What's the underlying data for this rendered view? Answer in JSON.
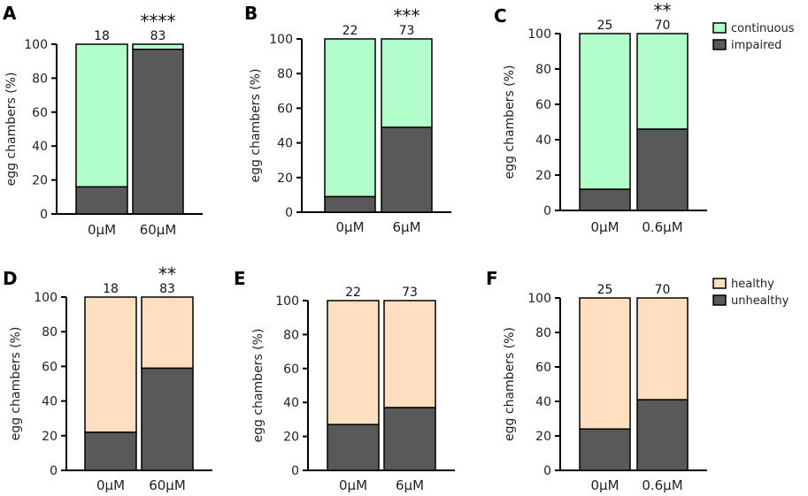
{
  "colors": {
    "continuous": "#b3ffcc",
    "impaired": "#595959",
    "healthy": "#ffdfc0",
    "unhealthy": "#595959"
  },
  "legends": [
    {
      "items": [
        {
          "label": "continuous",
          "color_key": "continuous"
        },
        {
          "label": "impaired",
          "color_key": "impaired"
        }
      ]
    },
    {
      "items": [
        {
          "label": "healthy",
          "color_key": "healthy"
        },
        {
          "label": "unhealthy",
          "color_key": "unhealthy"
        }
      ]
    }
  ],
  "chart_data": [
    {
      "panel": "A",
      "type": "bar",
      "stacked": true,
      "ylabel": "egg chambers (%)",
      "ylim": [
        0,
        100
      ],
      "yticks": [
        0,
        20,
        40,
        60,
        80,
        100
      ],
      "categories": [
        "0μM",
        "60μM"
      ],
      "n_labels": [
        "18",
        "83"
      ],
      "significance": "****",
      "series": [
        {
          "name": "impaired",
          "values": [
            16,
            97
          ]
        },
        {
          "name": "continuous",
          "values": [
            84,
            3
          ]
        }
      ]
    },
    {
      "panel": "B",
      "type": "bar",
      "stacked": true,
      "ylabel": "egg chambers (%)",
      "ylim": [
        0,
        100
      ],
      "yticks": [
        0,
        20,
        40,
        60,
        80,
        100
      ],
      "categories": [
        "0μM",
        "6μM"
      ],
      "n_labels": [
        "22",
        "73"
      ],
      "significance": "***",
      "series": [
        {
          "name": "impaired",
          "values": [
            9,
            49
          ]
        },
        {
          "name": "continuous",
          "values": [
            91,
            51
          ]
        }
      ]
    },
    {
      "panel": "C",
      "type": "bar",
      "stacked": true,
      "ylabel": "egg chambers (%)",
      "ylim": [
        0,
        100
      ],
      "yticks": [
        0,
        20,
        40,
        60,
        80,
        100
      ],
      "categories": [
        "0μM",
        "0.6μM"
      ],
      "n_labels": [
        "25",
        "70"
      ],
      "significance": "**",
      "series": [
        {
          "name": "impaired",
          "values": [
            12,
            46
          ]
        },
        {
          "name": "continuous",
          "values": [
            88,
            54
          ]
        }
      ]
    },
    {
      "panel": "D",
      "type": "bar",
      "stacked": true,
      "ylabel": "egg chambers (%)",
      "ylim": [
        0,
        100
      ],
      "yticks": [
        0,
        20,
        40,
        60,
        80,
        100
      ],
      "categories": [
        "0μM",
        "60μM"
      ],
      "n_labels": [
        "18",
        "83"
      ],
      "significance": "**",
      "series": [
        {
          "name": "unhealthy",
          "values": [
            22,
            59
          ]
        },
        {
          "name": "healthy",
          "values": [
            78,
            41
          ]
        }
      ]
    },
    {
      "panel": "E",
      "type": "bar",
      "stacked": true,
      "ylabel": "egg chambers (%)",
      "ylim": [
        0,
        100
      ],
      "yticks": [
        0,
        20,
        40,
        60,
        80,
        100
      ],
      "categories": [
        "0μM",
        "6μM"
      ],
      "n_labels": [
        "22",
        "73"
      ],
      "significance": "",
      "series": [
        {
          "name": "unhealthy",
          "values": [
            27,
            37
          ]
        },
        {
          "name": "healthy",
          "values": [
            73,
            63
          ]
        }
      ]
    },
    {
      "panel": "F",
      "type": "bar",
      "stacked": true,
      "ylabel": "egg chambers (%)",
      "ylim": [
        0,
        100
      ],
      "yticks": [
        0,
        20,
        40,
        60,
        80,
        100
      ],
      "categories": [
        "0μM",
        "0.6μM"
      ],
      "n_labels": [
        "25",
        "70"
      ],
      "significance": "",
      "series": [
        {
          "name": "unhealthy",
          "values": [
            24,
            41
          ]
        },
        {
          "name": "healthy",
          "values": [
            76,
            59
          ]
        }
      ]
    }
  ]
}
